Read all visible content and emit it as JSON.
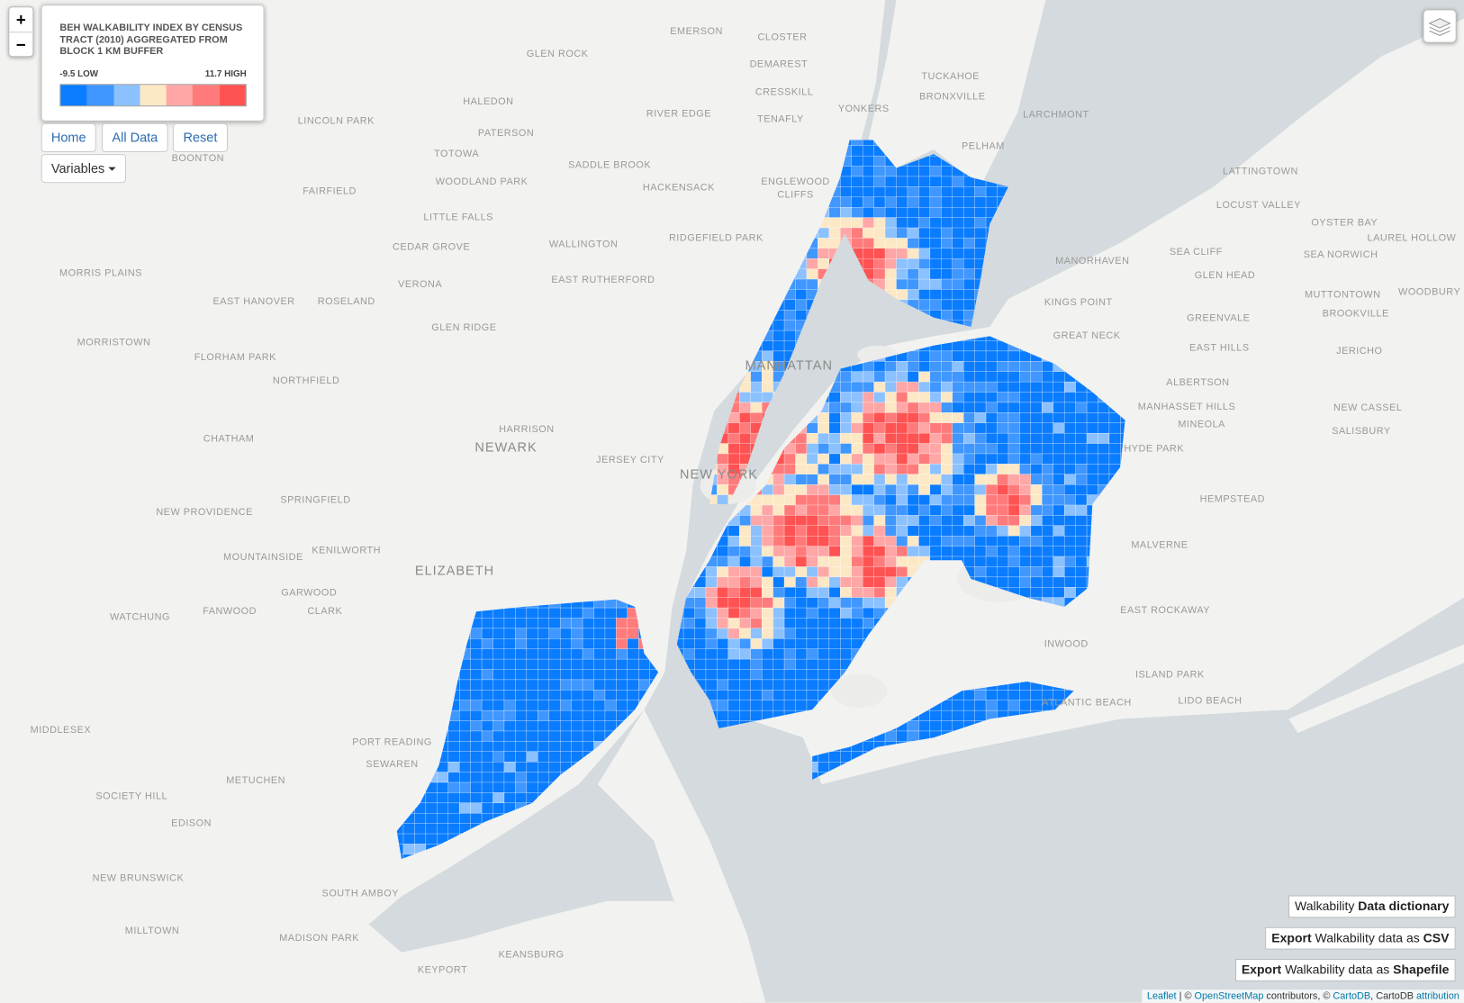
{
  "zoom": {
    "in": "+",
    "out": "−"
  },
  "legend": {
    "title": "BEH WALKABILITY INDEX BY CENSUS TRACT (2010) AGGREGATED FROM BLOCK 1 KM BUFFER",
    "low": "-9.5 LOW",
    "high": "11.7 HIGH",
    "colors": [
      "#0a7cff",
      "#3f97ff",
      "#8cc1ff",
      "#fde8c5",
      "#ffa6a6",
      "#ff7b7b",
      "#ff5252"
    ]
  },
  "buttons": [
    "Home",
    "All Data",
    "Reset"
  ],
  "variables": "Variables",
  "links": [
    [
      {
        "text": "Walkability "
      },
      {
        "text": "Data dictionary",
        "bold": true
      }
    ],
    [
      {
        "text": "Export",
        "bold": true
      },
      {
        "text": " Walkability data as "
      },
      {
        "text": "CSV",
        "bold": true
      }
    ],
    [
      {
        "text": "Export",
        "bold": true
      },
      {
        "text": " Walkability data as "
      },
      {
        "text": "Shapefile",
        "bold": true
      }
    ]
  ],
  "attribution": [
    {
      "text": "Leaflet",
      "link": true
    },
    {
      "text": " | © "
    },
    {
      "text": "OpenStreetMap",
      "link": true
    },
    {
      "text": " contributors, © "
    },
    {
      "text": "CartoDB",
      "link": true
    },
    {
      "text": ", CartoDB "
    },
    {
      "text": "attribution",
      "link": true
    }
  ],
  "cities": [
    "NEWARK",
    "ELIZABETH",
    "MANHATTAN",
    "NEW YORK"
  ],
  "places": [
    "EMERSON",
    "CLOSTER",
    "GLEN ROCK",
    "DEMAREST",
    "TUCKAHOE",
    "HALEDON",
    "CRESSKILL",
    "BRONXVILLE",
    "YONKERS",
    "RIVER EDGE",
    "TENAFLY",
    "LARCHMONT",
    "LINCOLN PARK",
    "PATERSON",
    "PELHAM",
    "TOTOWA",
    "SADDLE BROOK",
    "BOONTON",
    "HACKENSACK",
    "ENGLEWOOD",
    "CLIFFS",
    "FAIRFIELD",
    "WOODLAND PARK",
    "LITTLE FALLS",
    "LATTINGTOWN",
    "LOCUST VALLEY",
    "OYSTER BAY",
    "LAUREL HOLLOW",
    "WALLINGTON",
    "RIDGEFIELD PARK",
    "CEDAR GROVE",
    "SEA CLIFF",
    "SEA NORWICH",
    "EAST RUTHERFORD",
    "VERONA",
    "MORRIS PLAINS",
    "EAST HANOVER",
    "ROSELAND",
    "MANORHAVEN",
    "GLEN HEAD",
    "KINGS POINT",
    "MUTTONTOWN",
    "WOODBURY",
    "GREENVALE",
    "BROOKVILLE",
    "GLEN RIDGE",
    "MORRISTOWN",
    "FLORHAM PARK",
    "NORTHFIELD",
    "GREAT NECK",
    "EAST HILLS",
    "JERICHO",
    "ALBERTSON",
    "MANHASSET HILLS",
    "MINEOLA",
    "NEW CASSEL",
    "SALISBURY",
    "HARRISON",
    "CHATHAM",
    "JERSEY CITY",
    "HYDE PARK",
    "NEW PROVIDENCE",
    "SPRINGFIELD",
    "HEMPSTEAD",
    "KENILWORTH",
    "MOUNTAINSIDE",
    "MALVERNE",
    "GARWOOD",
    "FANWOOD",
    "CLARK",
    "WATCHUNG",
    "EAST ROCKAWAY",
    "INWOOD",
    "ISLAND PARK",
    "LIDO BEACH",
    "ATLANTIC BEACH",
    "MIDDLESEX",
    "PORT READING",
    "METUCHEN",
    "SEWAREN",
    "SOCIETY HILL",
    "EDISON",
    "NEW BRUNSWICK",
    "SOUTH AMBOY",
    "MILLTOWN",
    "MADISON PARK",
    "KEANSBURG",
    "KEYPORT"
  ]
}
